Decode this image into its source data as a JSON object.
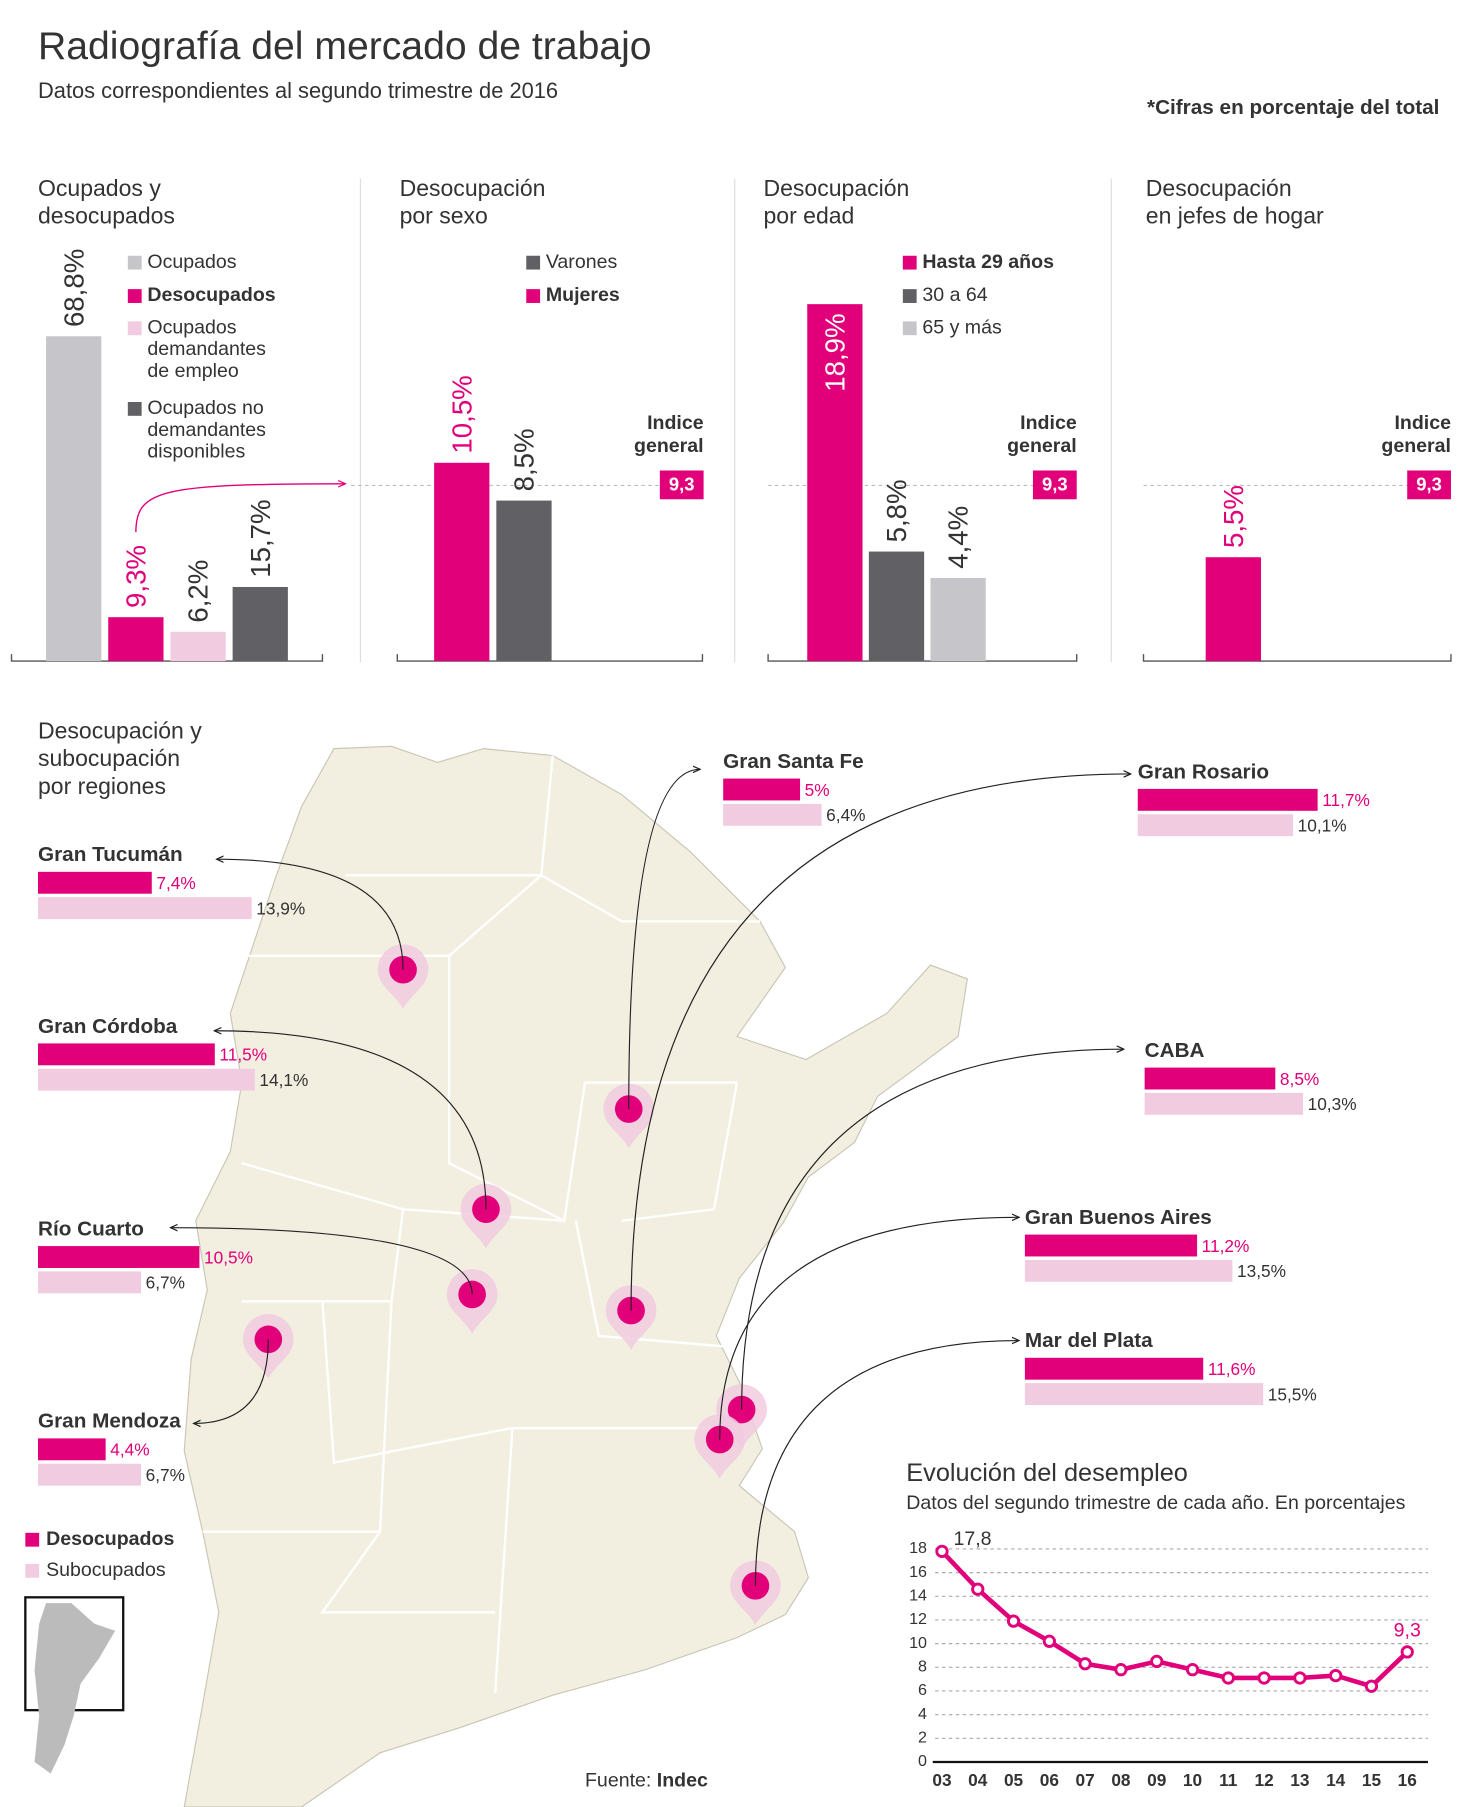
{
  "header": {
    "title": "Radiografía del mercado de trabajo",
    "subtitle": "Datos correspondientes al segundo trimestre de 2016",
    "note": "*Cifras en porcentaje del total"
  },
  "source": {
    "label": "Fuente:",
    "name": "Indec"
  },
  "chart_data": [
    {
      "type": "bar",
      "title": "Ocupados y\ndesocupados",
      "categories": [
        "Ocupados",
        "Desocupados",
        "Ocupados\ndemandantes\nde empleo",
        "Ocupados no\ndemandantes\ndisponibles"
      ],
      "values": [
        68.8,
        9.3,
        6.2,
        15.7
      ],
      "value_labels": [
        "68,8%",
        "9,3%",
        "6,2%",
        "15,7%"
      ],
      "colors": [
        "#c6c6ca",
        "#e2007a",
        "#f1cbdf",
        "#616165"
      ],
      "ylim": [
        0,
        80
      ]
    },
    {
      "type": "bar",
      "title": "Desocupación\npor sexo",
      "categories": [
        "Mujeres",
        "Varones"
      ],
      "values": [
        10.5,
        8.5
      ],
      "value_labels": [
        "10,5%",
        "8,5%"
      ],
      "colors": [
        "#e2007a",
        "#616165"
      ],
      "ylim": [
        0,
        20
      ],
      "reference": {
        "label": "Indice\ngeneral",
        "value": 9.3,
        "value_label": "9,3"
      }
    },
    {
      "type": "bar",
      "title": "Desocupación\npor edad",
      "categories": [
        "Hasta 29 años",
        "30 a 64",
        "65 y más"
      ],
      "values": [
        18.9,
        5.8,
        4.4
      ],
      "value_labels": [
        "18,9%",
        "5,8%",
        "4,4%"
      ],
      "colors": [
        "#e2007a",
        "#616165",
        "#c6c6ca"
      ],
      "ylim": [
        0,
        20
      ],
      "reference": {
        "label": "Indice\ngeneral",
        "value": 9.3,
        "value_label": "9,3"
      }
    },
    {
      "type": "bar",
      "title": "Desocupación\nen jefes de hogar",
      "values": [
        5.5
      ],
      "value_labels": [
        "5,5%"
      ],
      "colors": [
        "#e2007a"
      ],
      "ylim": [
        0,
        20
      ],
      "reference": {
        "label": "Indice\ngeneral",
        "value": 9.3,
        "value_label": "9,3"
      }
    },
    {
      "type": "bar",
      "horizontal": true,
      "title": "Desocupación y\nsubocupación\npor regiones",
      "categories": [
        "Gran Tucumán",
        "Gran Córdoba",
        "Río Cuarto",
        "Gran Mendoza",
        "Gran Santa Fe",
        "Gran Rosario",
        "CABA",
        "Gran Buenos Aires",
        "Mar del Plata"
      ],
      "series": [
        {
          "name": "Desocupados",
          "color": "#e2007a",
          "values": [
            7.4,
            11.5,
            10.5,
            4.4,
            5,
            11.7,
            8.5,
            11.2,
            11.6
          ],
          "value_labels": [
            "7,4%",
            "11,5%",
            "10,5%",
            "4,4%",
            "5%",
            "11,7%",
            "8,5%",
            "11,2%",
            "11,6%"
          ]
        },
        {
          "name": "Subocupados",
          "color": "#f1cbdf",
          "values": [
            13.9,
            14.1,
            6.7,
            6.7,
            6.4,
            10.1,
            10.3,
            13.5,
            15.5
          ],
          "value_labels": [
            "13,9%",
            "14,1%",
            "6,7%",
            "6,7%",
            "6,4%",
            "10,1%",
            "10,3%",
            "13,5%",
            "15,5%"
          ]
        }
      ],
      "xlim": [
        0,
        20
      ]
    },
    {
      "type": "line",
      "title": "Evolución del desempleo",
      "subtitle": "Datos del segundo trimestre de cada año. En porcentajes",
      "categories": [
        "03",
        "04",
        "05",
        "06",
        "07",
        "08",
        "09",
        "10",
        "11",
        "12",
        "13",
        "14",
        "15",
        "16"
      ],
      "values": [
        17.8,
        14.6,
        11.9,
        10.2,
        8.3,
        7.8,
        8.5,
        7.8,
        7.1,
        7.1,
        7.1,
        7.3,
        6.4,
        9.3
      ],
      "value_labels": [
        "17,8",
        null,
        null,
        null,
        null,
        null,
        null,
        null,
        null,
        null,
        null,
        null,
        null,
        "9,3"
      ],
      "color": "#e2007a",
      "ylim": [
        0,
        18
      ],
      "yticks": [
        0,
        2,
        4,
        6,
        8,
        10,
        12,
        14,
        16,
        18
      ],
      "grid": true
    }
  ]
}
